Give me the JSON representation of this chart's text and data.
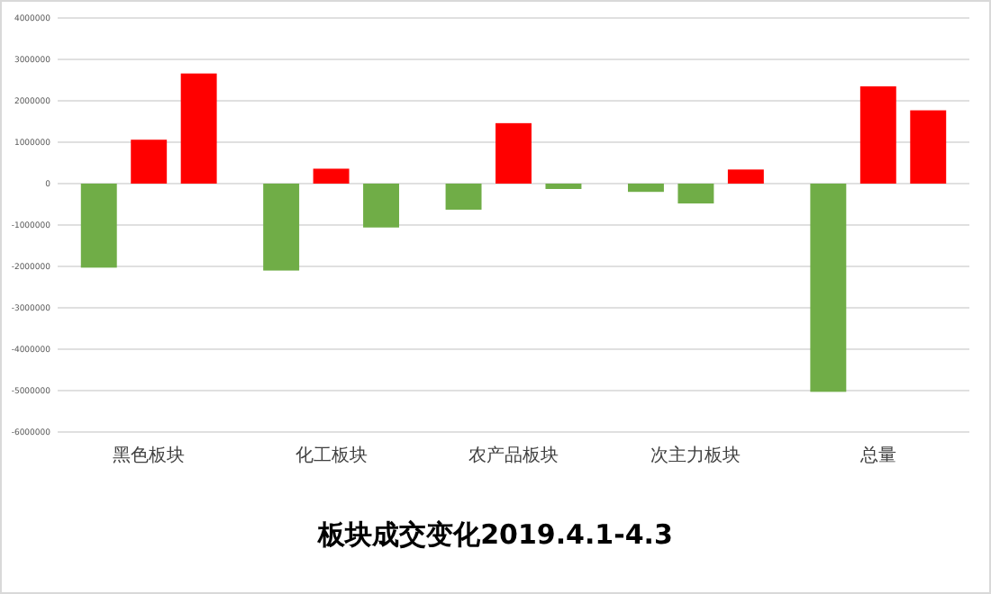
{
  "chart_data": {
    "type": "bar",
    "title": "板块成交变化2019.4.1-4.3",
    "categories": [
      "黑色板块",
      "化工板块",
      "农产品板块",
      "次主力板块",
      "总量"
    ],
    "series": [
      {
        "colors": [
          "#70ad47",
          "#70ad47",
          "#70ad47",
          "#70ad47",
          "#70ad47"
        ],
        "values": [
          -2030000,
          -2100000,
          -630000,
          -200000,
          -5030000
        ]
      },
      {
        "colors": [
          "#ff0000",
          "#ff0000",
          "#ff0000",
          "#70ad47",
          "#ff0000"
        ],
        "values": [
          1060000,
          360000,
          1460000,
          -480000,
          2350000
        ]
      },
      {
        "colors": [
          "#ff0000",
          "#70ad47",
          "#70ad47",
          "#ff0000",
          "#ff0000"
        ],
        "values": [
          2660000,
          -1060000,
          -130000,
          340000,
          1770000
        ]
      }
    ],
    "ylim": [
      -6000000,
      4000000
    ],
    "yticks": [
      -6000000,
      -5000000,
      -4000000,
      -3000000,
      -2000000,
      -1000000,
      0,
      1000000,
      2000000,
      3000000,
      4000000
    ],
    "grid": "y"
  }
}
